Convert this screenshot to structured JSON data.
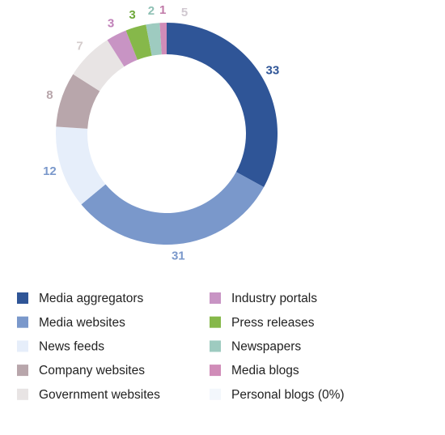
{
  "chart_data": {
    "type": "donut",
    "categories": [
      "Media aggregators",
      "Media websites",
      "News feeds",
      "Company websites",
      "Government websites",
      "Industry portals",
      "Press releases",
      "Newspapers",
      "Media blogs",
      "Personal blogs (0%)"
    ],
    "values": [
      33,
      31,
      12,
      8,
      7,
      3,
      3,
      2,
      1,
      0
    ],
    "colors": [
      "#2f5597",
      "#7a98cb",
      "#e6eefa",
      "#b8a6ab",
      "#e8e4e4",
      "#c894c4",
      "#86b84a",
      "#9ecbc0",
      "#d08cb8",
      "#f3f7fc"
    ],
    "label_colors": [
      "#2f5597",
      "#7a98cb",
      "#7a98cb",
      "#b8a6ab",
      "#d4cccc",
      "#c080b8",
      "#6ea83a",
      "#8ec0b4",
      "#c07aa8",
      "#d0c8d0"
    ],
    "annotation": "5"
  }
}
